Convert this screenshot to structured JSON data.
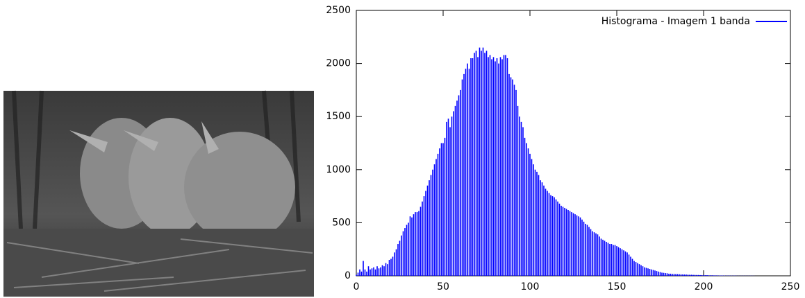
{
  "chart_data": {
    "type": "impulse",
    "series": [
      {
        "name": "Histograma - Imagem 1 banda",
        "color": "#0000ff",
        "x": [
          0,
          1,
          2,
          3,
          4,
          5,
          6,
          7,
          8,
          9,
          10,
          11,
          12,
          13,
          14,
          15,
          16,
          17,
          18,
          19,
          20,
          21,
          22,
          23,
          24,
          25,
          26,
          27,
          28,
          29,
          30,
          31,
          32,
          33,
          34,
          35,
          36,
          37,
          38,
          39,
          40,
          41,
          42,
          43,
          44,
          45,
          46,
          47,
          48,
          49,
          50,
          51,
          52,
          53,
          54,
          55,
          56,
          57,
          58,
          59,
          60,
          61,
          62,
          63,
          64,
          65,
          66,
          67,
          68,
          69,
          70,
          71,
          72,
          73,
          74,
          75,
          76,
          77,
          78,
          79,
          80,
          81,
          82,
          83,
          84,
          85,
          86,
          87,
          88,
          89,
          90,
          91,
          92,
          93,
          94,
          95,
          96,
          97,
          98,
          99,
          100,
          101,
          102,
          103,
          104,
          105,
          106,
          107,
          108,
          109,
          110,
          111,
          112,
          113,
          114,
          115,
          116,
          117,
          118,
          119,
          120,
          121,
          122,
          123,
          124,
          125,
          126,
          127,
          128,
          129,
          130,
          131,
          132,
          133,
          134,
          135,
          136,
          137,
          138,
          139,
          140,
          141,
          142,
          143,
          144,
          145,
          146,
          147,
          148,
          149,
          150,
          151,
          152,
          153,
          154,
          155,
          156,
          157,
          158,
          159,
          160,
          161,
          162,
          163,
          164,
          165,
          166,
          167,
          168,
          169,
          170,
          171,
          172,
          173,
          174,
          175,
          176,
          177,
          178,
          179,
          180,
          181,
          182,
          183,
          184,
          185,
          186,
          187,
          188,
          189,
          190,
          191,
          192,
          193,
          194,
          195,
          196,
          197,
          198,
          199,
          200,
          201,
          202,
          203,
          204,
          205,
          206,
          207,
          208,
          209,
          210,
          211,
          212,
          213,
          214,
          215,
          216,
          217,
          218,
          219,
          220,
          221,
          222,
          223,
          224,
          225,
          226,
          227,
          228,
          229
        ],
        "values": [
          10,
          30,
          60,
          40,
          140,
          60,
          40,
          90,
          60,
          70,
          80,
          60,
          90,
          70,
          80,
          100,
          90,
          120,
          110,
          150,
          160,
          180,
          220,
          250,
          300,
          330,
          380,
          420,
          450,
          480,
          500,
          560,
          550,
          580,
          600,
          600,
          610,
          650,
          700,
          750,
          800,
          850,
          900,
          950,
          1000,
          1050,
          1100,
          1150,
          1200,
          1250,
          1250,
          1300,
          1450,
          1480,
          1400,
          1500,
          1550,
          1600,
          1650,
          1700,
          1750,
          1850,
          1900,
          1950,
          2000,
          1950,
          2050,
          2050,
          2100,
          2120,
          2060,
          2150,
          2120,
          2150,
          2100,
          2120,
          2060,
          2080,
          2040,
          2060,
          2020,
          2050,
          2000,
          2060,
          2040,
          2080,
          2080,
          2050,
          1900,
          1870,
          1850,
          1800,
          1750,
          1600,
          1500,
          1450,
          1400,
          1300,
          1250,
          1200,
          1150,
          1100,
          1050,
          1000,
          980,
          950,
          900,
          880,
          850,
          820,
          800,
          780,
          760,
          750,
          740,
          720,
          700,
          680,
          660,
          650,
          640,
          630,
          620,
          610,
          600,
          590,
          580,
          570,
          560,
          550,
          530,
          510,
          490,
          480,
          460,
          440,
          420,
          410,
          400,
          390,
          370,
          350,
          340,
          330,
          320,
          310,
          300,
          300,
          290,
          290,
          280,
          270,
          260,
          250,
          240,
          230,
          220,
          200,
          180,
          160,
          140,
          130,
          120,
          110,
          100,
          90,
          80,
          75,
          70,
          65,
          60,
          55,
          50,
          45,
          40,
          35,
          30,
          28,
          26,
          24,
          20,
          20,
          18,
          18,
          16,
          16,
          15,
          14,
          13,
          12,
          12,
          11,
          10,
          10,
          9,
          9,
          8,
          8,
          7,
          7,
          7,
          6,
          6,
          5,
          5,
          5,
          4,
          4,
          4,
          3,
          3,
          3,
          3,
          2,
          2,
          2,
          2,
          2,
          2,
          1,
          1,
          1,
          1,
          1,
          1,
          1,
          1,
          1,
          1,
          1
        ]
      }
    ],
    "xlim": [
      0,
      250
    ],
    "xticks": [
      0,
      50,
      100,
      150,
      200,
      250
    ],
    "ylim": [
      0,
      2500
    ],
    "yticks": [
      0,
      500,
      1000,
      1500,
      2000,
      2500
    ],
    "grid": false,
    "legend": "top-right"
  }
}
